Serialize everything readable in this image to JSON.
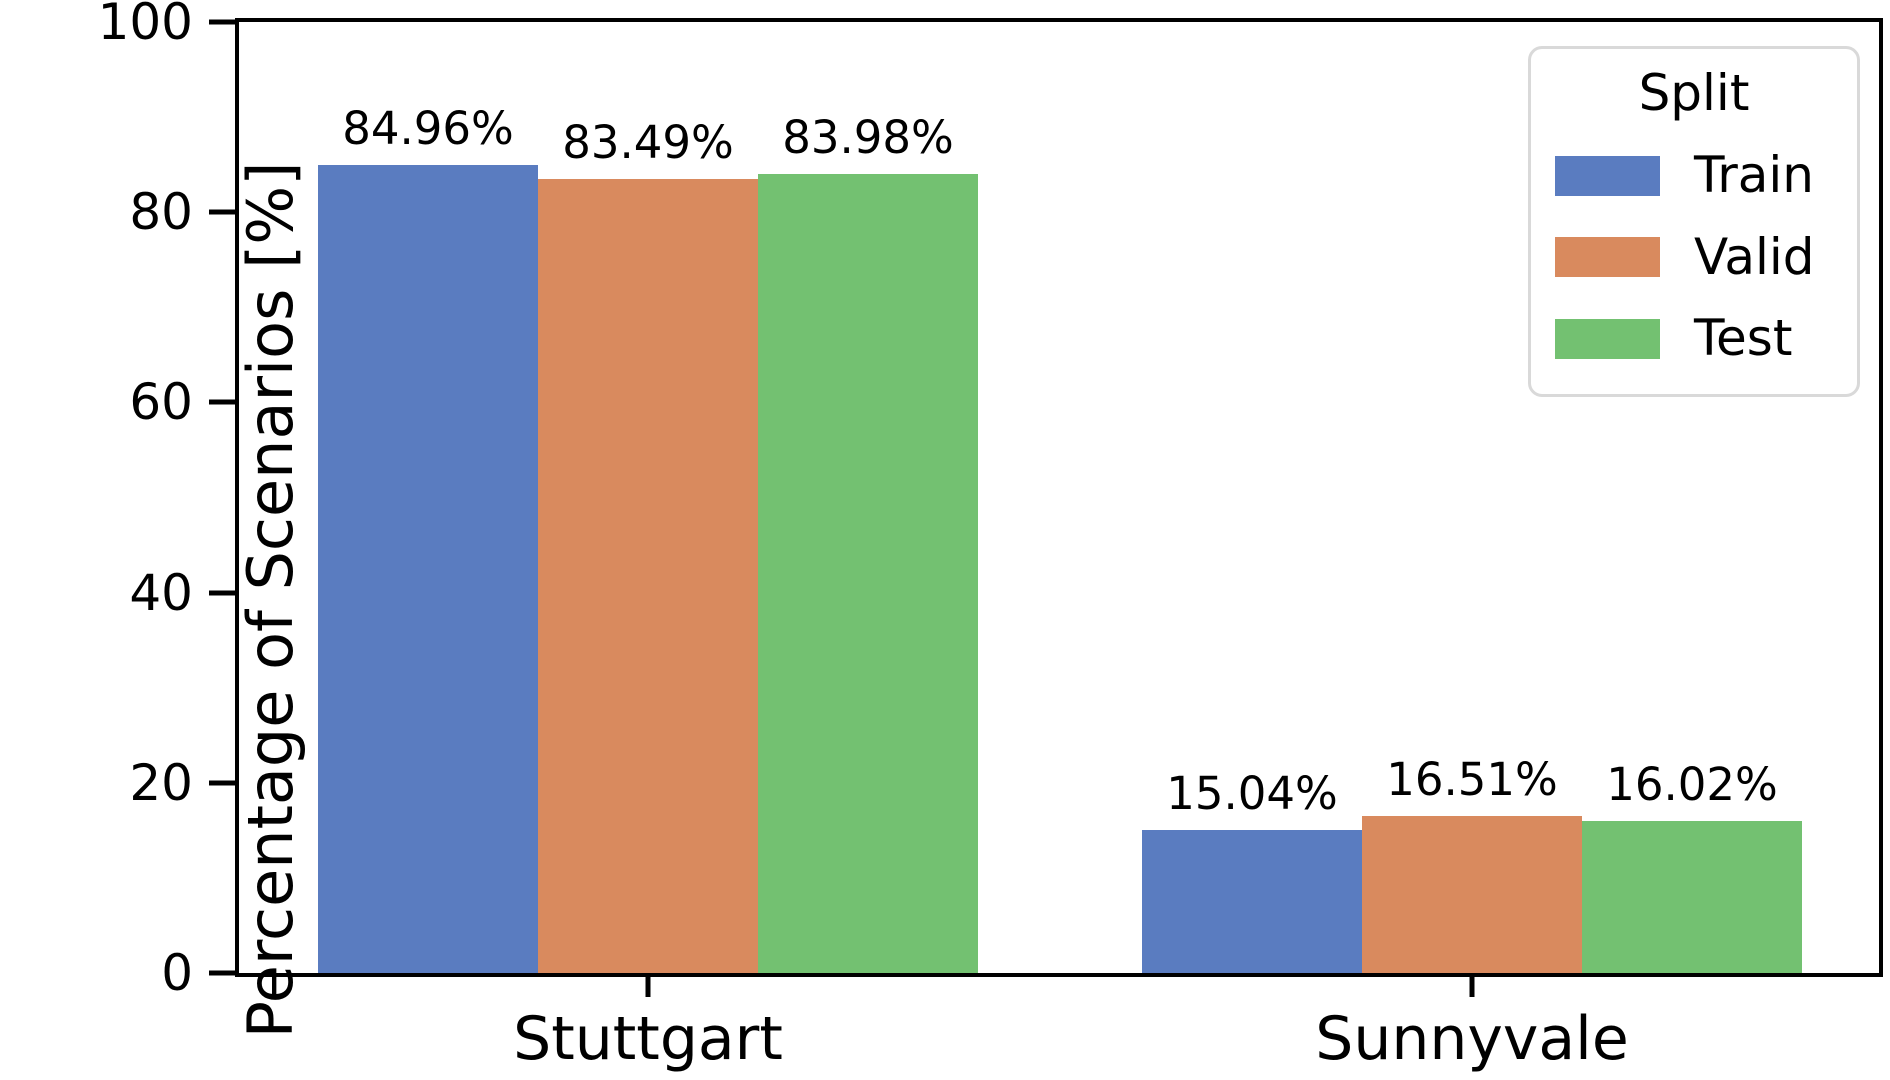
{
  "chart_data": {
    "type": "bar",
    "title": "",
    "xlabel": "",
    "ylabel": "Percentage of Scenarios [%]",
    "ylim": [
      0,
      100
    ],
    "yticks": [
      0,
      20,
      40,
      60,
      80,
      100
    ],
    "grid": false,
    "categories": [
      "Stuttgart",
      "Sunnyvale"
    ],
    "series": [
      {
        "name": "Train",
        "color": "#5a7cc0",
        "values": [
          84.96,
          15.04
        ],
        "value_labels": [
          "84.96%",
          "15.04%"
        ]
      },
      {
        "name": "Valid",
        "color": "#d98a5e",
        "values": [
          83.49,
          16.51
        ],
        "value_labels": [
          "83.49%",
          "16.51%"
        ]
      },
      {
        "name": "Test",
        "color": "#73c171",
        "values": [
          83.98,
          16.02
        ],
        "value_labels": [
          "83.98%",
          "16.02%"
        ]
      }
    ],
    "legend": {
      "title": "Split",
      "position": "upper right"
    }
  },
  "colors": {
    "background": "#ffffff",
    "axis": "#000000",
    "text": "#000000",
    "legend_border": "#d9d9d9"
  }
}
